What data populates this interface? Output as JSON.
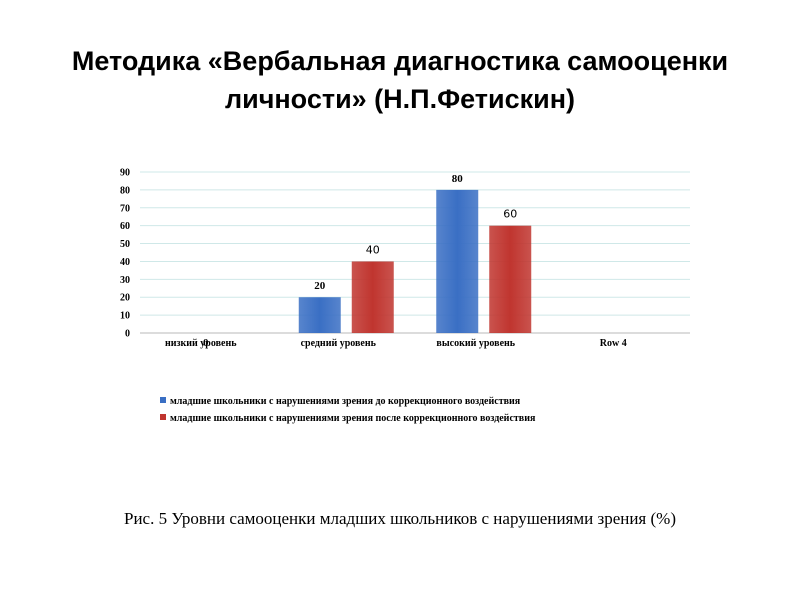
{
  "slide": {
    "title": "Методика  «Вербальная диагностика самооценки личности» (Н.П.Фетискин)",
    "caption": "Рис. 5 Уровни самооценки младших школьников с нарушениями зрения (%)"
  },
  "chart_data": {
    "type": "bar",
    "categories": [
      "низкий уровень",
      "средний уровень",
      "высокий уровень",
      "Row 4"
    ],
    "series": [
      {
        "name": "младшие школьники с нарушениями зрения до коррекционного воздействия",
        "values": [
          0,
          20,
          80,
          null
        ],
        "color": "#3a6fc4"
      },
      {
        "name": "младшие школьники с нарушениями зрения после коррекционного воздействия",
        "values": [
          0,
          40,
          60,
          null
        ],
        "color": "#c0352f"
      }
    ],
    "data_labels": [
      [
        "0",
        "20",
        "80",
        ""
      ],
      [
        "",
        "40",
        "60",
        ""
      ]
    ],
    "ylim": [
      0,
      90
    ],
    "yticks": [
      0,
      10,
      20,
      30,
      40,
      50,
      60,
      70,
      80,
      90
    ],
    "grid": true,
    "legend_position": "bottom-left"
  }
}
